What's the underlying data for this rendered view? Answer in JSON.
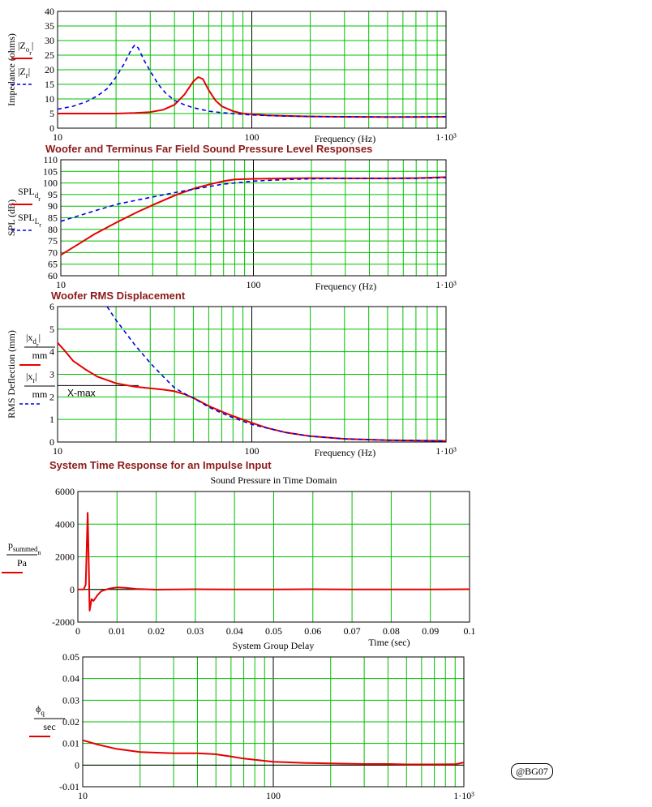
{
  "headings": {
    "spl": "Woofer and Terminus Far Field Sound Pressure Level Responses",
    "disp": "Woofer RMS Displacement",
    "time": "System Time Response for an Impulse Input"
  },
  "badge": "@BG07",
  "chart_data": [
    {
      "id": "impedance",
      "type": "line",
      "xscale": "log",
      "xlim": [
        10,
        1000
      ],
      "ylim": [
        0,
        40
      ],
      "yticks": [
        0,
        5,
        10,
        15,
        20,
        25,
        30,
        35,
        40
      ],
      "xtick_labels": [
        "10",
        "100",
        "1·10³"
      ],
      "xlabel": "Frequency (Hz)",
      "ylabel": "Impedance (ohms)",
      "legend": [
        {
          "base": "|Z",
          "sub": "o",
          "sub2": "r",
          "close": "|",
          "color": "#e60000",
          "style": "solid"
        },
        {
          "base": "|Z",
          "sub": "r",
          "sub2": "",
          "close": "|",
          "color": "#0000e6",
          "style": "dash"
        }
      ],
      "series": [
        {
          "color": "#e60000",
          "style": "solid",
          "x": [
            10,
            15,
            20,
            25,
            30,
            35,
            40,
            45,
            50,
            53,
            56,
            60,
            65,
            70,
            80,
            90,
            100,
            120,
            150,
            200,
            300,
            500,
            700,
            1000
          ],
          "y": [
            5,
            5,
            5,
            5.2,
            5.5,
            6.3,
            8,
            11.5,
            16,
            17.5,
            16.8,
            13,
            9.5,
            7.5,
            5.8,
            5,
            4.8,
            4.4,
            4.2,
            4,
            3.9,
            3.8,
            3.8,
            3.9
          ]
        },
        {
          "color": "#0000e6",
          "style": "dash",
          "x": [
            10,
            12,
            14,
            16,
            18,
            20,
            22,
            24,
            25,
            26,
            28,
            30,
            33,
            36,
            40,
            45,
            50,
            60,
            70,
            80,
            100,
            150,
            200,
            300,
            500,
            1000
          ],
          "y": [
            6.5,
            7.5,
            9,
            11,
            13.5,
            17.5,
            22,
            27,
            28.5,
            27.5,
            23,
            19.5,
            15,
            12,
            9.5,
            8,
            7,
            5.8,
            5.3,
            5,
            4.5,
            4.1,
            4,
            3.9,
            3.8,
            3.9
          ]
        }
      ]
    },
    {
      "id": "spl",
      "type": "line",
      "xscale": "log",
      "xlim": [
        10,
        1000
      ],
      "ylim": [
        60,
        110
      ],
      "yticks": [
        60,
        65,
        70,
        75,
        80,
        85,
        90,
        95,
        100,
        105,
        110
      ],
      "xtick_labels": [
        "10",
        "100",
        "1·10³"
      ],
      "xlabel": "Frequency (Hz)",
      "ylabel": "SPL (dB)",
      "legend": [
        {
          "base": "SPL",
          "sub": "d",
          "sub2": "r",
          "close": "",
          "color": "#e60000",
          "style": "solid"
        },
        {
          "base": "SPL",
          "sub": "L",
          "sub2": "r",
          "close": "",
          "color": "#0000e6",
          "style": "dash"
        }
      ],
      "series": [
        {
          "color": "#e60000",
          "style": "solid",
          "x": [
            10,
            12,
            15,
            20,
            25,
            30,
            40,
            50,
            60,
            70,
            80,
            100,
            150,
            200,
            300,
            500,
            700,
            1000
          ],
          "y": [
            69,
            73,
            78,
            83.5,
            87.5,
            90.5,
            95,
            97.8,
            99.5,
            100.8,
            101.5,
            101.8,
            102,
            102.1,
            102,
            102,
            102.1,
            102.5
          ]
        },
        {
          "color": "#0000e6",
          "style": "dash",
          "x": [
            10,
            15,
            20,
            30,
            40,
            50,
            70,
            100,
            150,
            200,
            300,
            500,
            700,
            1000
          ],
          "y": [
            83.5,
            88,
            91,
            94,
            96,
            97.5,
            99.5,
            100.8,
            101.5,
            101.8,
            102,
            102,
            102,
            102.3
          ]
        }
      ]
    },
    {
      "id": "displacement",
      "type": "line",
      "xscale": "log",
      "xlim": [
        10,
        1000
      ],
      "ylim": [
        0,
        6
      ],
      "yticks": [
        0,
        1,
        2,
        3,
        4,
        5,
        6
      ],
      "xtick_labels": [
        "10",
        "100",
        "1·10³"
      ],
      "xlabel": "Frequency (Hz)",
      "ylabel": "RMS Deflection (mm)",
      "annotation": {
        "text": "X-max",
        "y": 2.5
      },
      "legend": [
        {
          "base": "|x",
          "sub": "d",
          "sub2": "r",
          "close": "|",
          "den": "mm",
          "color": "#e60000",
          "style": "solid"
        },
        {
          "base": "|x",
          "sub": "r",
          "sub2": "",
          "close": "|",
          "den": "mm",
          "color": "#0000e6",
          "style": "dash"
        }
      ],
      "series": [
        {
          "color": "#e60000",
          "style": "solid",
          "x": [
            10,
            11,
            12,
            14,
            16,
            20,
            25,
            30,
            35,
            40,
            45,
            50,
            60,
            70,
            80,
            100,
            120,
            150,
            200,
            300,
            500,
            1000
          ],
          "y": [
            4.4,
            4,
            3.6,
            3.2,
            2.9,
            2.6,
            2.45,
            2.38,
            2.32,
            2.25,
            2.12,
            1.95,
            1.6,
            1.35,
            1.15,
            0.85,
            0.62,
            0.42,
            0.26,
            0.14,
            0.08,
            0.05
          ]
        },
        {
          "color": "#0000e6",
          "style": "dash",
          "x": [
            18,
            20,
            25,
            30,
            35,
            40,
            45,
            50,
            60,
            70,
            80,
            100,
            150,
            200,
            300,
            500,
            1000
          ],
          "y": [
            6,
            5.4,
            4.3,
            3.5,
            2.9,
            2.4,
            2.15,
            1.95,
            1.55,
            1.28,
            1.08,
            0.78,
            0.42,
            0.26,
            0.14,
            0.08,
            0.05
          ]
        }
      ]
    },
    {
      "id": "time",
      "type": "line",
      "xscale": "linear",
      "title": "Sound Pressure in Time Domain",
      "xlim": [
        0,
        0.1
      ],
      "ylim": [
        -2000,
        6000
      ],
      "yticks": [
        -2000,
        0,
        2000,
        4000,
        6000
      ],
      "xticks": [
        0,
        0.01,
        0.02,
        0.03,
        0.04,
        0.05,
        0.06,
        0.07,
        0.08,
        0.09,
        0.1
      ],
      "xtick_labels": [
        "0",
        "0.01",
        "0.02",
        "0.03",
        "0.04",
        "0.05",
        "0.06",
        "0.07",
        "0.08",
        "0.09",
        "0.1"
      ],
      "xlabel": "Time (sec)",
      "legend": [
        {
          "base": "p",
          "sub": "summed",
          "sub2": "n",
          "close": "",
          "den": "Pa",
          "color": "#e60000",
          "style": "solid"
        }
      ],
      "series": [
        {
          "color": "#e60000",
          "style": "solid",
          "x": [
            0,
            0.0015,
            0.002,
            0.0025,
            0.0028,
            0.003,
            0.0035,
            0.004,
            0.005,
            0.006,
            0.008,
            0.01,
            0.012,
            0.015,
            0.02,
            0.03,
            0.04,
            0.05,
            0.06,
            0.07,
            0.08,
            0.09,
            0.1
          ],
          "y": [
            0,
            0,
            300,
            4700,
            1500,
            -1300,
            -600,
            -700,
            -350,
            -100,
            50,
            120,
            100,
            30,
            -10,
            10,
            0,
            0,
            10,
            0,
            0,
            0,
            10
          ]
        }
      ]
    },
    {
      "id": "delay",
      "type": "line",
      "xscale": "log",
      "title": "System Group Delay",
      "xlim": [
        10,
        1000
      ],
      "ylim": [
        -0.01,
        0.05
      ],
      "yticks": [
        -0.01,
        0,
        0.01,
        0.02,
        0.03,
        0.04,
        0.05
      ],
      "xtick_labels": [
        "10",
        "100",
        "1·10³"
      ],
      "legend": [
        {
          "base": "ϕ",
          "sub": "q",
          "sub2": "",
          "close": "",
          "den": "sec",
          "color": "#e60000",
          "style": "solid"
        }
      ],
      "series": [
        {
          "color": "#e60000",
          "style": "solid",
          "x": [
            10,
            12,
            15,
            20,
            30,
            40,
            50,
            60,
            70,
            80,
            100,
            150,
            200,
            300,
            400,
            500,
            700,
            900,
            1000
          ],
          "y": [
            0.0115,
            0.0095,
            0.0075,
            0.006,
            0.0055,
            0.0055,
            0.005,
            0.004,
            0.003,
            0.0025,
            0.0015,
            0.001,
            0.0008,
            0.0005,
            0.0005,
            0.0003,
            0.0003,
            0.0004,
            0.0012
          ]
        }
      ]
    }
  ]
}
